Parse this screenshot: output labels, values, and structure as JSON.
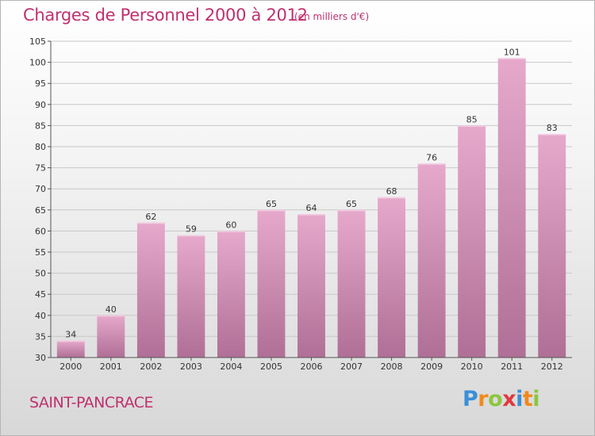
{
  "header": {
    "title": "Charges de Personnel 2000 à 2012",
    "subtitle": "(en milliers d'€)"
  },
  "footer": {
    "town": "SAINT-PANCRACE",
    "logo_text": "Proxiti"
  },
  "colors": {
    "title": "#c0306e",
    "bar_top": "#e6a9cc",
    "bar_bottom": "#b06f96",
    "grid": "#c8c8c8"
  },
  "chart_data": {
    "type": "bar",
    "title": "Charges de Personnel 2000 à 2012",
    "subtitle": "(en milliers d'€)",
    "categories": [
      "2000",
      "2001",
      "2002",
      "2003",
      "2004",
      "2005",
      "2006",
      "2007",
      "2008",
      "2009",
      "2010",
      "2011",
      "2012"
    ],
    "values": [
      34,
      40,
      62,
      59,
      60,
      65,
      64,
      65,
      68,
      76,
      85,
      101,
      83
    ],
    "ylim": [
      30,
      105
    ],
    "yticks": [
      30,
      35,
      40,
      45,
      50,
      55,
      60,
      65,
      70,
      75,
      80,
      85,
      90,
      95,
      100,
      105
    ],
    "grid": true,
    "data_labels": true
  }
}
